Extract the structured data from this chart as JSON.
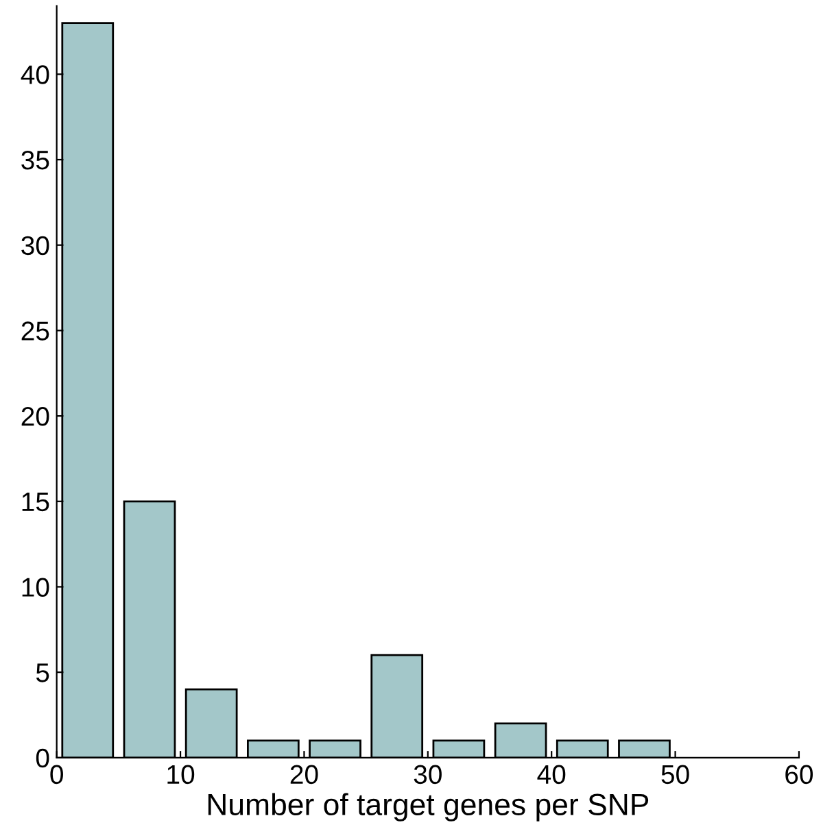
{
  "chart_data": {
    "type": "histogram",
    "xlabel": "Number of target genes per SNP",
    "bins": [
      0,
      5,
      10,
      15,
      20,
      25,
      30,
      35,
      40,
      45,
      50
    ],
    "values": [
      43,
      15,
      4,
      1,
      1,
      6,
      1,
      2,
      1,
      1
    ],
    "color": "#a3c7c9",
    "xlim": [
      0,
      60
    ],
    "xticks": [
      0,
      10,
      20,
      30,
      40,
      50,
      60
    ],
    "ylim": [
      0,
      44
    ],
    "yticks": [
      0,
      5,
      10,
      15,
      20,
      25,
      30,
      35,
      40
    ],
    "grid": false
  }
}
